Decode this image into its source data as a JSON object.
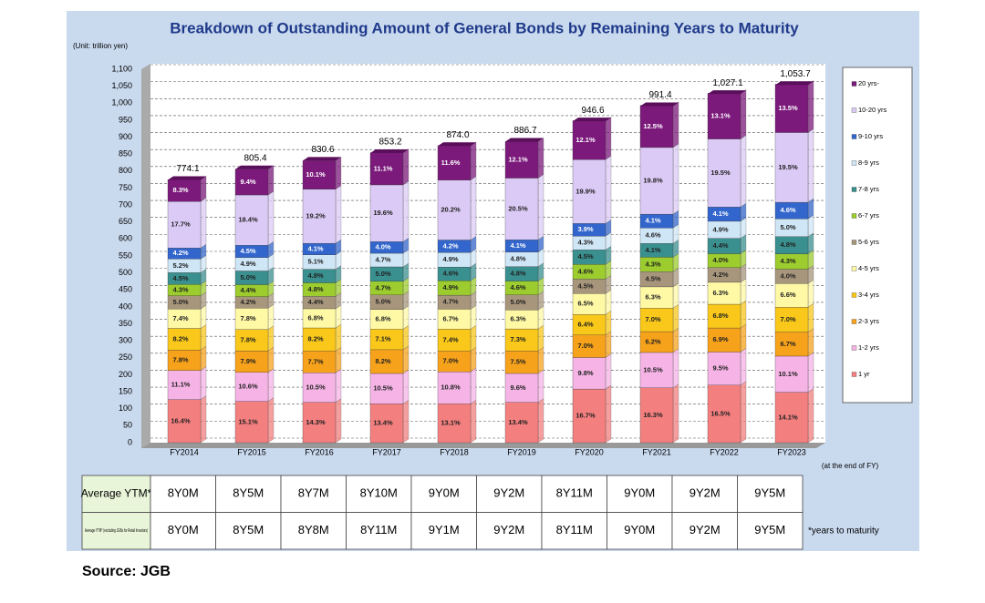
{
  "chart_data": {
    "type": "stacked-bar",
    "title": "Breakdown of Outstanding Amount of General Bonds by Remaining Years to Maturity",
    "unit_note": "(Unit: trillion yen)",
    "x_note": "(at the end of FY)",
    "categories": [
      "FY2014",
      "FY2015",
      "FY2016",
      "FY2017",
      "FY2018",
      "FY2019",
      "FY2020",
      "FY2021",
      "FY2022",
      "FY2023"
    ],
    "totals": {
      "values": [
        774.1,
        805.4,
        830.6,
        853.2,
        874.0,
        886.7,
        946.6,
        991.4,
        1027.1,
        1053.7
      ],
      "value_labels": [
        "774.1",
        "805.4",
        "830.6",
        "853.2",
        "874.0",
        "886.7",
        "946.6",
        "991.4",
        "1,027.1",
        "1,053.7"
      ]
    },
    "series": [
      {
        "name": "1 yr",
        "color": "#f47f7f",
        "values": [
          16.4,
          15.1,
          14.3,
          13.4,
          13.1,
          13.4,
          16.7,
          16.3,
          16.5,
          14.1
        ],
        "value_labels": [
          "16.4%",
          "15.1%",
          "14.3%",
          "13.4%",
          "13.1%",
          "13.4%",
          "16.7%",
          "16.3%",
          "16.5%",
          "14.1%"
        ]
      },
      {
        "name": "1-2 yrs",
        "color": "#f6b4e6",
        "values": [
          11.1,
          10.6,
          10.5,
          10.5,
          10.8,
          9.6,
          9.8,
          10.5,
          9.5,
          10.1
        ],
        "value_labels": [
          "11.1%",
          "10.6%",
          "10.5%",
          "10.5%",
          "10.8%",
          "9.6%",
          "9.8%",
          "10.5%",
          "9.5%",
          "10.1%"
        ]
      },
      {
        "name": "2-3 yrs",
        "color": "#f7a21b",
        "values": [
          7.8,
          7.9,
          7.7,
          8.2,
          7.0,
          7.5,
          7.0,
          6.2,
          6.9,
          6.7
        ],
        "value_labels": [
          "7.8%",
          "7.9%",
          "7.7%",
          "8.2%",
          "7.0%",
          "7.5%",
          "7.0%",
          "6.2%",
          "6.9%",
          "6.7%"
        ]
      },
      {
        "name": "3-4 yrs",
        "color": "#f9c81a",
        "values": [
          8.2,
          7.8,
          8.2,
          7.1,
          7.4,
          7.3,
          6.4,
          7.0,
          6.8,
          7.0
        ],
        "value_labels": [
          "8.2%",
          "7.8%",
          "8.2%",
          "7.1%",
          "7.4%",
          "7.3%",
          "6.4%",
          "7.0%",
          "6.8%",
          "7.0%"
        ]
      },
      {
        "name": "4-5 yrs",
        "color": "#fff9a6",
        "values": [
          7.4,
          7.8,
          6.8,
          6.8,
          6.7,
          6.3,
          6.5,
          6.3,
          6.3,
          6.6
        ],
        "value_labels": [
          "7.4%",
          "7.8%",
          "6.8%",
          "6.8%",
          "6.7%",
          "6.3%",
          "6.5%",
          "6.3%",
          "6.3%",
          "6.6%"
        ]
      },
      {
        "name": "5-6 yrs",
        "color": "#a8967c",
        "values": [
          5.0,
          4.2,
          4.4,
          5.0,
          4.7,
          5.0,
          4.5,
          4.5,
          4.2,
          4.0
        ],
        "value_labels": [
          "5.0%",
          "4.2%",
          "4.4%",
          "5.0%",
          "4.7%",
          "5.0%",
          "4.5%",
          "4.5%",
          "4.2%",
          "4.0%"
        ]
      },
      {
        "name": "6-7 yrs",
        "color": "#9ccc2e",
        "values": [
          4.3,
          4.4,
          4.8,
          4.7,
          4.9,
          4.6,
          4.6,
          4.3,
          4.0,
          4.3
        ],
        "value_labels": [
          "4.3%",
          "4.4%",
          "4.8%",
          "4.7%",
          "4.9%",
          "4.6%",
          "4.6%",
          "4.3%",
          "4.0%",
          "4.3%"
        ]
      },
      {
        "name": "7-8 yrs",
        "color": "#3a8f8f",
        "values": [
          4.5,
          5.0,
          4.8,
          5.0,
          4.6,
          4.8,
          4.5,
          4.1,
          4.4,
          4.8
        ],
        "value_labels": [
          "4.5%",
          "5.0%",
          "4.8%",
          "5.0%",
          "4.6%",
          "4.8%",
          "4.5%",
          "4.1%",
          "4.4%",
          "4.8%"
        ]
      },
      {
        "name": "8-9 yrs",
        "color": "#cfe6f7",
        "values": [
          5.2,
          4.9,
          5.1,
          4.7,
          4.9,
          4.8,
          4.3,
          4.6,
          4.9,
          5.0
        ],
        "value_labels": [
          "5.2%",
          "4.9%",
          "5.1%",
          "4.7%",
          "4.9%",
          "4.8%",
          "4.3%",
          "4.6%",
          "4.9%",
          "5.0%"
        ]
      },
      {
        "name": "9-10 yrs",
        "color": "#3366cc",
        "values": [
          4.2,
          4.5,
          4.1,
          4.0,
          4.2,
          4.1,
          3.9,
          4.1,
          4.1,
          4.6
        ],
        "value_labels": [
          "4.2%",
          "4.5%",
          "4.1%",
          "4.0%",
          "4.2%",
          "4.1%",
          "3.9%",
          "4.1%",
          "4.1%",
          "4.6%"
        ]
      },
      {
        "name": "10-20 yrs",
        "color": "#dccaf6",
        "values": [
          17.7,
          18.4,
          19.2,
          19.6,
          20.2,
          20.5,
          19.9,
          19.8,
          19.5,
          19.5
        ],
        "value_labels": [
          "17.7%",
          "18.4%",
          "19.2%",
          "19.6%",
          "20.2%",
          "20.5%",
          "19.9%",
          "19.8%",
          "19.5%",
          "19.5%"
        ]
      },
      {
        "name": "20 yrs-",
        "color": "#7b1a7b",
        "values": [
          8.3,
          9.4,
          10.1,
          11.1,
          11.6,
          12.1,
          12.1,
          12.5,
          13.1,
          13.5
        ],
        "value_labels": [
          "8.3%",
          "9.4%",
          "10.1%",
          "11.1%",
          "11.6%",
          "12.1%",
          "12.1%",
          "12.5%",
          "13.1%",
          "13.5%"
        ]
      }
    ],
    "ylim": [
      0,
      1100
    ],
    "yticks": [
      0,
      50,
      100,
      150,
      200,
      250,
      300,
      350,
      400,
      450,
      500,
      550,
      600,
      650,
      700,
      750,
      800,
      850,
      900,
      950,
      {
        "value": 1000,
        "label": "1,000"
      },
      {
        "value": 1050,
        "label": "1,050"
      },
      {
        "value": 1100,
        "label": "1,100"
      }
    ],
    "grid": true
  },
  "table": {
    "rows": [
      {
        "header": "Average YTM*",
        "cells": [
          "8Y0M",
          "8Y5M",
          "8Y7M",
          "8Y10M",
          "9Y0M",
          "9Y2M",
          "8Y11M",
          "9Y0M",
          "9Y2M",
          "9Y5M"
        ]
      },
      {
        "header": "Average YTM* (excluding JGBs for Retail Investors)",
        "cells": [
          "8Y0M",
          "8Y5M",
          "8Y8M",
          "8Y11M",
          "9Y1M",
          "9Y2M",
          "8Y11M",
          "9Y0M",
          "9Y2M",
          "9Y5M"
        ],
        "note": "*years to maturity"
      }
    ]
  },
  "source": "Source: JGB"
}
